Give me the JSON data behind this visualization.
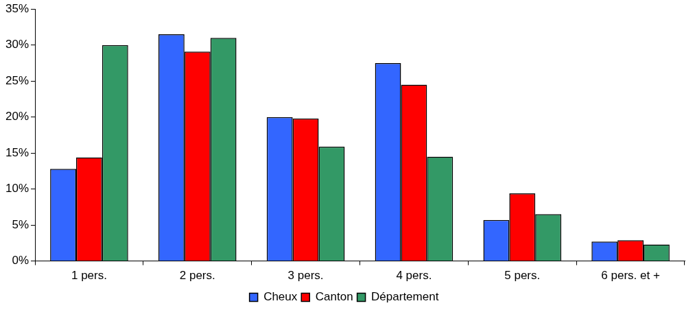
{
  "chart_data": {
    "type": "bar",
    "categories": [
      "1 pers.",
      "2 pers.",
      "3 pers.",
      "4 pers.",
      "5 pers.",
      "6 pers. et +"
    ],
    "series": [
      {
        "name": "Cheux",
        "color": "#3366ff",
        "values": [
          12.8,
          31.5,
          20.0,
          27.5,
          5.7,
          2.7
        ]
      },
      {
        "name": "Canton",
        "color": "#ff0000",
        "values": [
          14.4,
          29.1,
          19.8,
          24.5,
          9.4,
          2.9
        ]
      },
      {
        "name": "Département",
        "color": "#339966",
        "values": [
          30.0,
          31.0,
          15.9,
          14.5,
          6.5,
          2.3
        ]
      }
    ],
    "ylim": [
      0,
      35
    ],
    "yticks": [
      {
        "value": 0,
        "label": "0%"
      },
      {
        "value": 5,
        "label": "5%"
      },
      {
        "value": 10,
        "label": "10%"
      },
      {
        "value": 15,
        "label": "15%"
      },
      {
        "value": 20,
        "label": "20%"
      },
      {
        "value": 25,
        "label": "25%"
      },
      {
        "value": 30,
        "label": "30%"
      },
      {
        "value": 35,
        "label": "35%"
      }
    ],
    "grid": false,
    "legend": "bottom"
  }
}
